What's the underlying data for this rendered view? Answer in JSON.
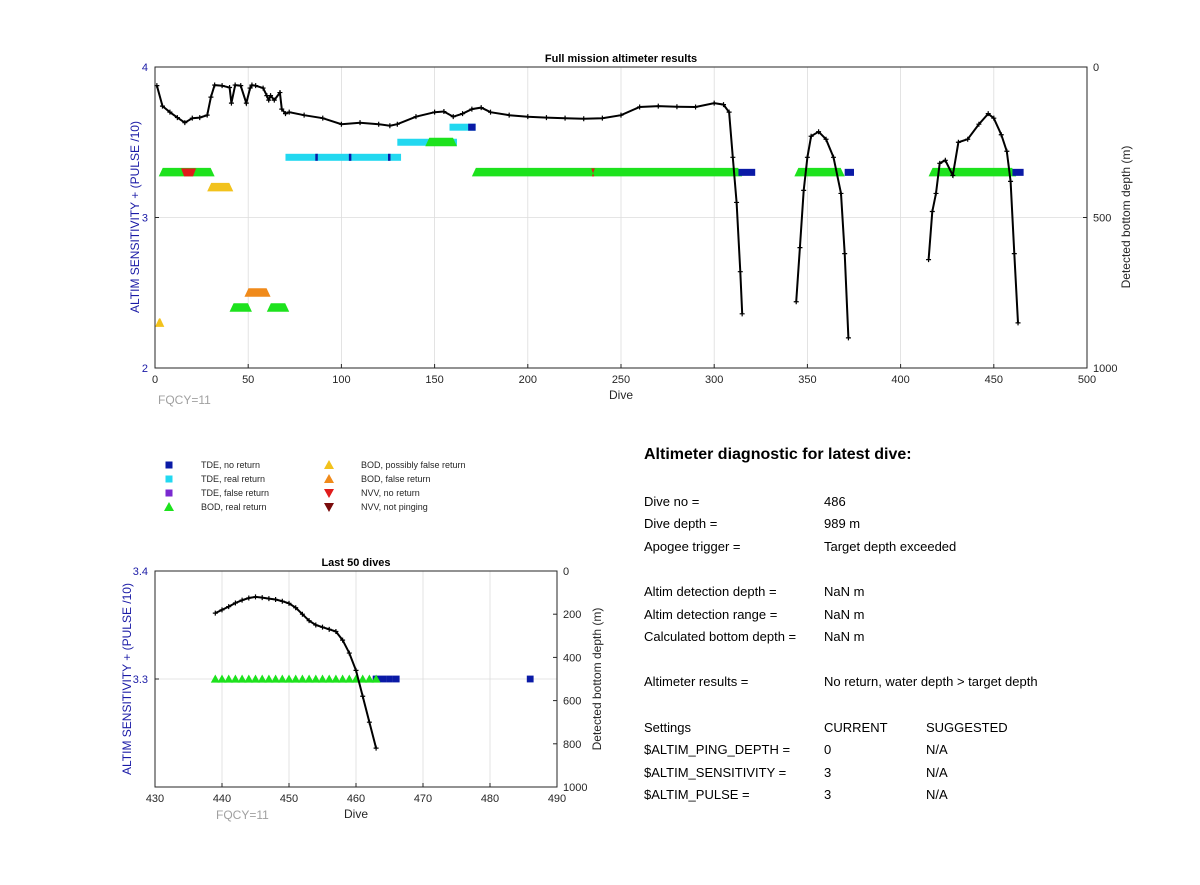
{
  "chart_data": [
    {
      "type": "scatter",
      "title": "Full mission altimeter results",
      "xlabel": "Dive",
      "ylabel": "ALTIM SENSITIVITY + (PULSE /10)",
      "y2label": "Detected bottom depth (m)",
      "xlim": [
        0,
        500
      ],
      "ylim": [
        2,
        4
      ],
      "y2lim": [
        1000,
        0
      ],
      "y2_reversed": true,
      "x_ticks": [
        "0",
        "50",
        "100",
        "150",
        "200",
        "250",
        "300",
        "350",
        "400",
        "450",
        "500"
      ],
      "y_ticks": [
        "2",
        "3",
        "4"
      ],
      "y2_ticks": [
        "0",
        "500",
        "1000"
      ],
      "grid": true,
      "annotation": "FQCY=11",
      "bars": [
        {
          "series": "BOD, real return",
          "x": [
            2,
            32
          ],
          "y": 3.3
        },
        {
          "series": "NVV, no return",
          "x": [
            14,
            22
          ],
          "y": 3.3
        },
        {
          "series": "BOD, possibly false return",
          "x": [
            28,
            42
          ],
          "y": 3.2
        },
        {
          "series": "BOD, possibly false return",
          "x": [
            0,
            5
          ],
          "y": 2.3
        },
        {
          "series": "BOD, false return",
          "x": [
            48,
            62
          ],
          "y": 2.5
        },
        {
          "series": "BOD, real return",
          "x": [
            40,
            52
          ],
          "y": 2.4
        },
        {
          "series": "BOD, real return",
          "x": [
            60,
            72
          ],
          "y": 2.4
        },
        {
          "series": "TDE, real return",
          "x": [
            70,
            132
          ],
          "y": 3.4
        },
        {
          "series": "TDE, no return",
          "x": [
            86,
            87
          ],
          "y": 3.4
        },
        {
          "series": "TDE, no return",
          "x": [
            104,
            105
          ],
          "y": 3.4
        },
        {
          "series": "TDE, no return",
          "x": [
            125,
            126
          ],
          "y": 3.4
        },
        {
          "series": "TDE, real return",
          "x": [
            130,
            162
          ],
          "y": 3.5
        },
        {
          "series": "BOD, real return",
          "x": [
            145,
            162
          ],
          "y": 3.5
        },
        {
          "series": "TDE, real return",
          "x": [
            158,
            172
          ],
          "y": 3.6
        },
        {
          "series": "TDE, no return",
          "x": [
            168,
            172
          ],
          "y": 3.6
        },
        {
          "series": "BOD, real return",
          "x": [
            170,
            315
          ],
          "y": 3.3
        },
        {
          "series": "NVV, no return",
          "x": [
            234,
            236
          ],
          "y": 3.3
        },
        {
          "series": "TDE, no return",
          "x": [
            313,
            322
          ],
          "y": 3.3
        },
        {
          "series": "BOD, real return",
          "x": [
            343,
            370
          ],
          "y": 3.3
        },
        {
          "series": "TDE, no return",
          "x": [
            370,
            375
          ],
          "y": 3.3
        },
        {
          "series": "BOD, real return",
          "x": [
            415,
            462
          ],
          "y": 3.3
        },
        {
          "series": "TDE, no return",
          "x": [
            460,
            466
          ],
          "y": 3.3
        }
      ],
      "depth_segments": [
        [
          [
            1,
            62
          ],
          [
            4,
            130
          ],
          [
            8,
            150
          ],
          [
            12,
            168
          ],
          [
            16,
            185
          ],
          [
            20,
            170
          ],
          [
            24,
            168
          ],
          [
            28,
            160
          ],
          [
            30,
            100
          ],
          [
            32,
            60
          ],
          [
            36,
            62
          ],
          [
            40,
            68
          ],
          [
            41,
            120
          ],
          [
            43,
            60
          ],
          [
            46,
            62
          ],
          [
            49,
            120
          ],
          [
            51,
            70
          ],
          [
            52,
            60
          ],
          [
            54,
            62
          ],
          [
            58,
            70
          ],
          [
            60,
            95
          ],
          [
            61,
            110
          ],
          [
            62,
            95
          ],
          [
            64,
            110
          ],
          [
            67,
            85
          ],
          [
            68,
            140
          ],
          [
            70,
            155
          ],
          [
            72,
            150
          ],
          [
            80,
            160
          ],
          [
            90,
            170
          ],
          [
            100,
            190
          ],
          [
            110,
            185
          ],
          [
            120,
            190
          ],
          [
            126,
            195
          ],
          [
            130,
            190
          ],
          [
            140,
            165
          ],
          [
            150,
            150
          ],
          [
            155,
            148
          ],
          [
            160,
            165
          ],
          [
            165,
            155
          ],
          [
            170,
            140
          ],
          [
            175,
            135
          ],
          [
            180,
            150
          ],
          [
            190,
            160
          ],
          [
            200,
            165
          ],
          [
            210,
            168
          ],
          [
            220,
            170
          ],
          [
            230,
            172
          ],
          [
            240,
            170
          ],
          [
            250,
            160
          ],
          [
            260,
            133
          ],
          [
            270,
            130
          ],
          [
            280,
            132
          ],
          [
            290,
            133
          ],
          [
            300,
            120
          ],
          [
            305,
            125
          ],
          [
            308,
            150
          ],
          [
            310,
            300
          ],
          [
            312,
            450
          ],
          [
            314,
            680
          ],
          [
            315,
            820
          ]
        ],
        [
          [
            344,
            780
          ],
          [
            346,
            600
          ],
          [
            348,
            410
          ],
          [
            350,
            300
          ],
          [
            352,
            230
          ],
          [
            356,
            215
          ],
          [
            360,
            240
          ],
          [
            364,
            300
          ],
          [
            368,
            420
          ],
          [
            370,
            620
          ],
          [
            372,
            900
          ]
        ],
        [
          [
            415,
            640
          ],
          [
            417,
            480
          ],
          [
            419,
            420
          ],
          [
            421,
            320
          ],
          [
            424,
            310
          ],
          [
            428,
            360
          ],
          [
            431,
            250
          ],
          [
            436,
            240
          ],
          [
            442,
            190
          ],
          [
            447,
            155
          ],
          [
            450,
            170
          ],
          [
            454,
            225
          ],
          [
            457,
            280
          ],
          [
            459,
            380
          ],
          [
            461,
            620
          ],
          [
            463,
            850
          ]
        ]
      ]
    },
    {
      "type": "scatter",
      "title": "Last 50 dives",
      "xlabel": "Dive",
      "ylabel": "ALTIM SENSITIVITY + (PULSE /10)",
      "y2label": "Detected bottom depth (m)",
      "xlim": [
        430,
        490
      ],
      "ylim": [
        3.2,
        3.4
      ],
      "y2lim": [
        1000,
        0
      ],
      "y2_reversed": true,
      "x_ticks": [
        "430",
        "440",
        "450",
        "460",
        "470",
        "480",
        "490"
      ],
      "y_ticks": [
        "3.3",
        "3.4"
      ],
      "y2_ticks": [
        "0",
        "200",
        "400",
        "600",
        "800",
        "1000"
      ],
      "grid": true,
      "annotation": "FQCY=11",
      "bod_real_dives": [
        439,
        440,
        441,
        442,
        443,
        444,
        445,
        446,
        447,
        448,
        449,
        450,
        451,
        452,
        453,
        454,
        455,
        456,
        457,
        458,
        459,
        460,
        461,
        462,
        463
      ],
      "tde_no_return_dives": [
        463,
        464,
        465,
        466,
        486
      ],
      "y_value": 3.3,
      "depth": [
        [
          439,
          195
        ],
        [
          440,
          180
        ],
        [
          441,
          165
        ],
        [
          442,
          148
        ],
        [
          443,
          135
        ],
        [
          444,
          125
        ],
        [
          445,
          120
        ],
        [
          446,
          123
        ],
        [
          447,
          128
        ],
        [
          448,
          132
        ],
        [
          449,
          140
        ],
        [
          450,
          150
        ],
        [
          451,
          170
        ],
        [
          452,
          200
        ],
        [
          453,
          230
        ],
        [
          454,
          250
        ],
        [
          455,
          260
        ],
        [
          456,
          270
        ],
        [
          457,
          280
        ],
        [
          458,
          320
        ],
        [
          459,
          380
        ],
        [
          460,
          460
        ],
        [
          461,
          580
        ],
        [
          462,
          700
        ],
        [
          463,
          820
        ]
      ]
    }
  ],
  "legend": {
    "items": [
      {
        "label": "TDE, no return",
        "color": "#0a1aa6",
        "shape": "square"
      },
      {
        "label": "TDE, real return",
        "color": "#22d8f0",
        "shape": "square"
      },
      {
        "label": "TDE, false return",
        "color": "#7a2ad0",
        "shape": "square"
      },
      {
        "label": "BOD, real return",
        "color": "#1de21d",
        "shape": "triangle-up"
      },
      {
        "label": "BOD, possibly false return",
        "color": "#f2c21c",
        "shape": "triangle-up"
      },
      {
        "label": "BOD, false return",
        "color": "#f08a1a",
        "shape": "triangle-up"
      },
      {
        "label": "NVV, no return",
        "color": "#e01c1c",
        "shape": "triangle-down"
      },
      {
        "label": "NVV, not pinging",
        "color": "#7a0c0c",
        "shape": "triangle-down"
      }
    ]
  },
  "diagnostic": {
    "title": "Altimeter diagnostic for latest dive:",
    "rows": [
      {
        "label": "Dive no =",
        "value": "486"
      },
      {
        "label": "Dive depth =",
        "value": "989 m"
      },
      {
        "label": "Apogee trigger =",
        "value": "Target depth exceeded"
      },
      {
        "label": "Altim detection depth =",
        "value": "NaN m"
      },
      {
        "label": "Altim detection range =",
        "value": "NaN m"
      },
      {
        "label": "Calculated bottom depth =",
        "value": "NaN m"
      },
      {
        "label": "Altimeter results =",
        "value": "No return, water depth > target depth"
      }
    ],
    "settings": {
      "header": [
        "Settings",
        "CURRENT",
        "SUGGESTED"
      ],
      "rows": [
        {
          "name": "$ALTIM_PING_DEPTH =",
          "current": "0",
          "suggested": "N/A"
        },
        {
          "name": "$ALTIM_SENSITIVITY =",
          "current": "3",
          "suggested": "N/A"
        },
        {
          "name": "$ALTIM_PULSE =",
          "current": "3",
          "suggested": "N/A"
        }
      ]
    }
  }
}
